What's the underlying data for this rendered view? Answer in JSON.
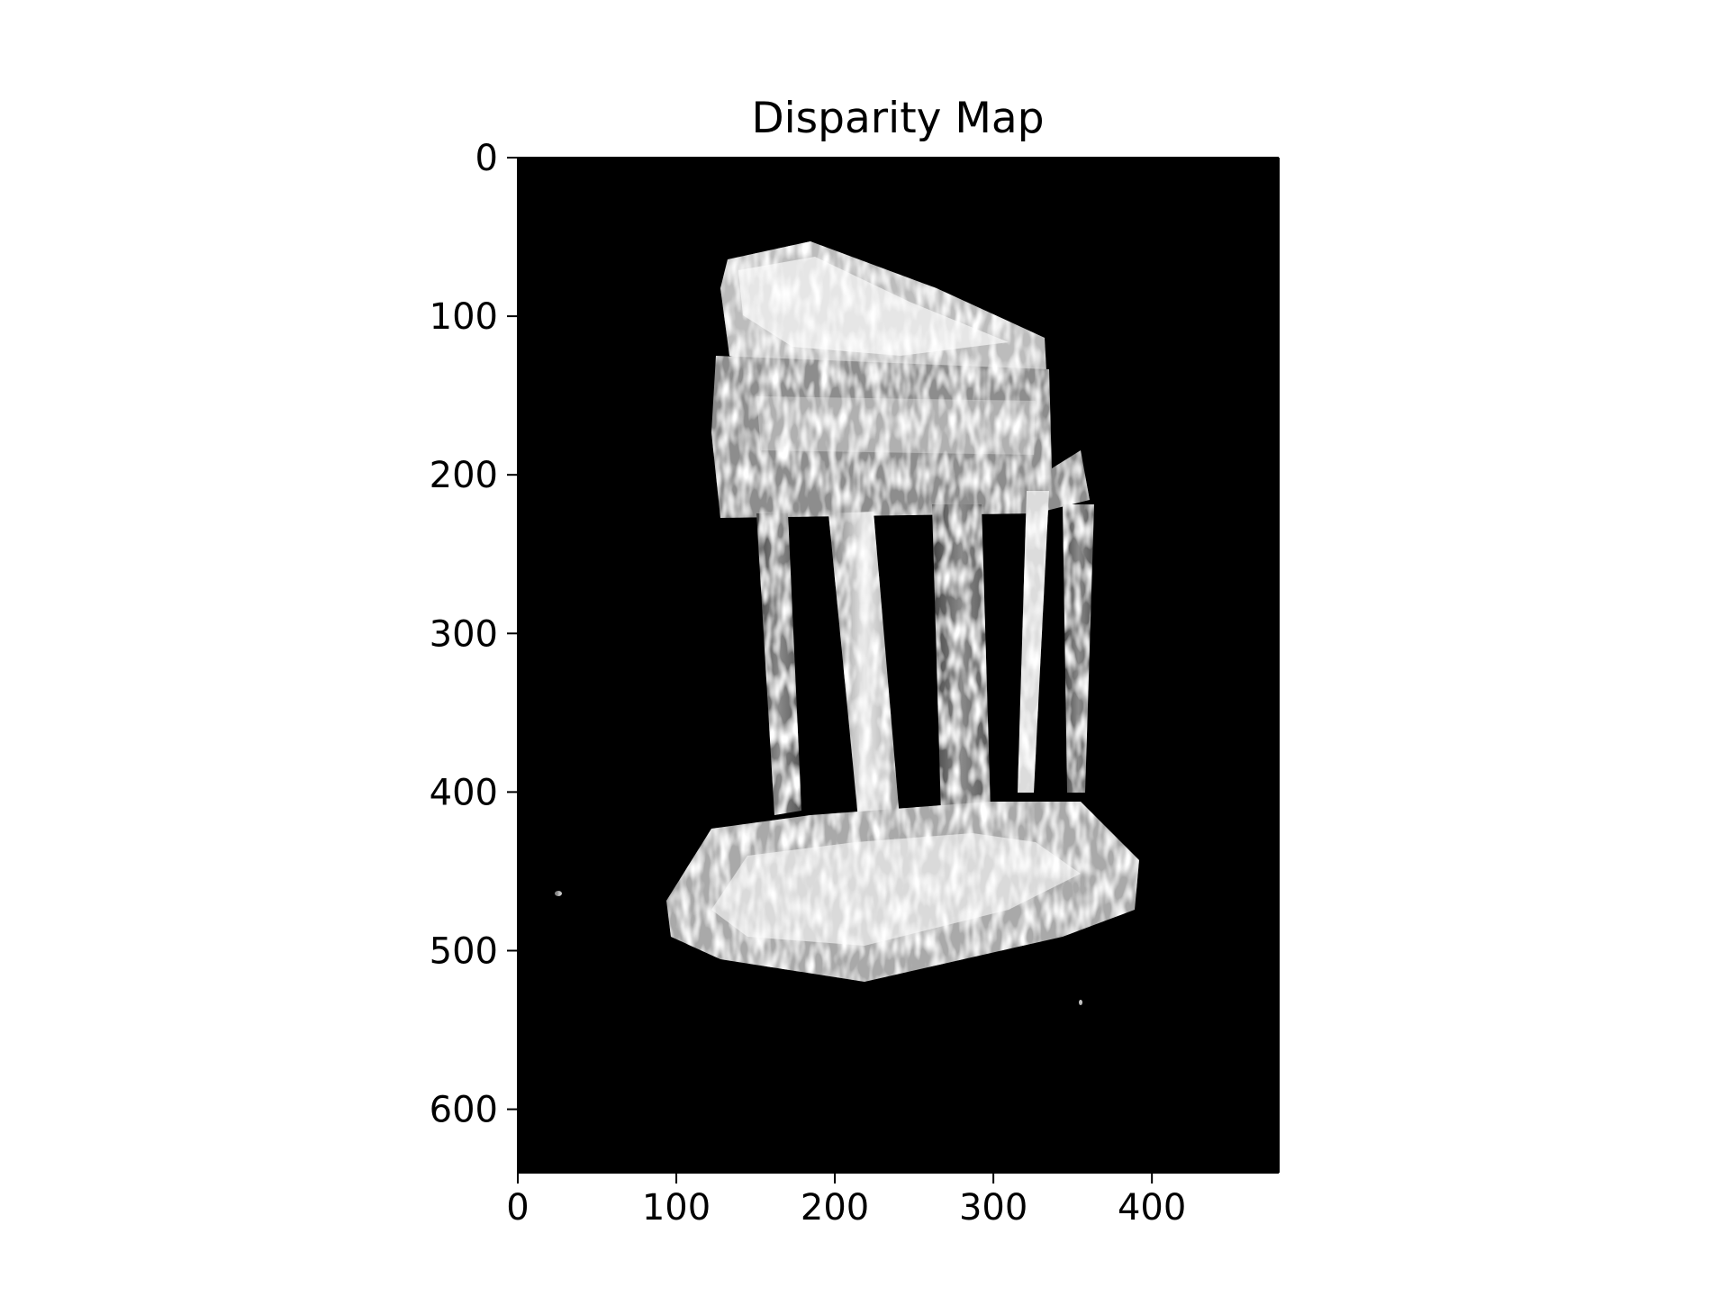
{
  "chart_data": {
    "type": "heatmap",
    "title": "Disparity Map",
    "xlabel": "",
    "ylabel": "",
    "colormap": "gray",
    "background_color": "#000000",
    "image_shape": {
      "width": 480,
      "height": 640
    },
    "xlim": [
      0,
      480
    ],
    "ylim": [
      640,
      0
    ],
    "x_ticks": [
      0,
      100,
      200,
      300,
      400
    ],
    "y_ticks": [
      0,
      100,
      200,
      300,
      400,
      500,
      600
    ],
    "x_tick_labels": [
      "0",
      "100",
      "200",
      "300",
      "400"
    ],
    "y_tick_labels": [
      "0",
      "100",
      "200",
      "300",
      "400",
      "500",
      "600"
    ],
    "grid": false,
    "legend": "none"
  }
}
